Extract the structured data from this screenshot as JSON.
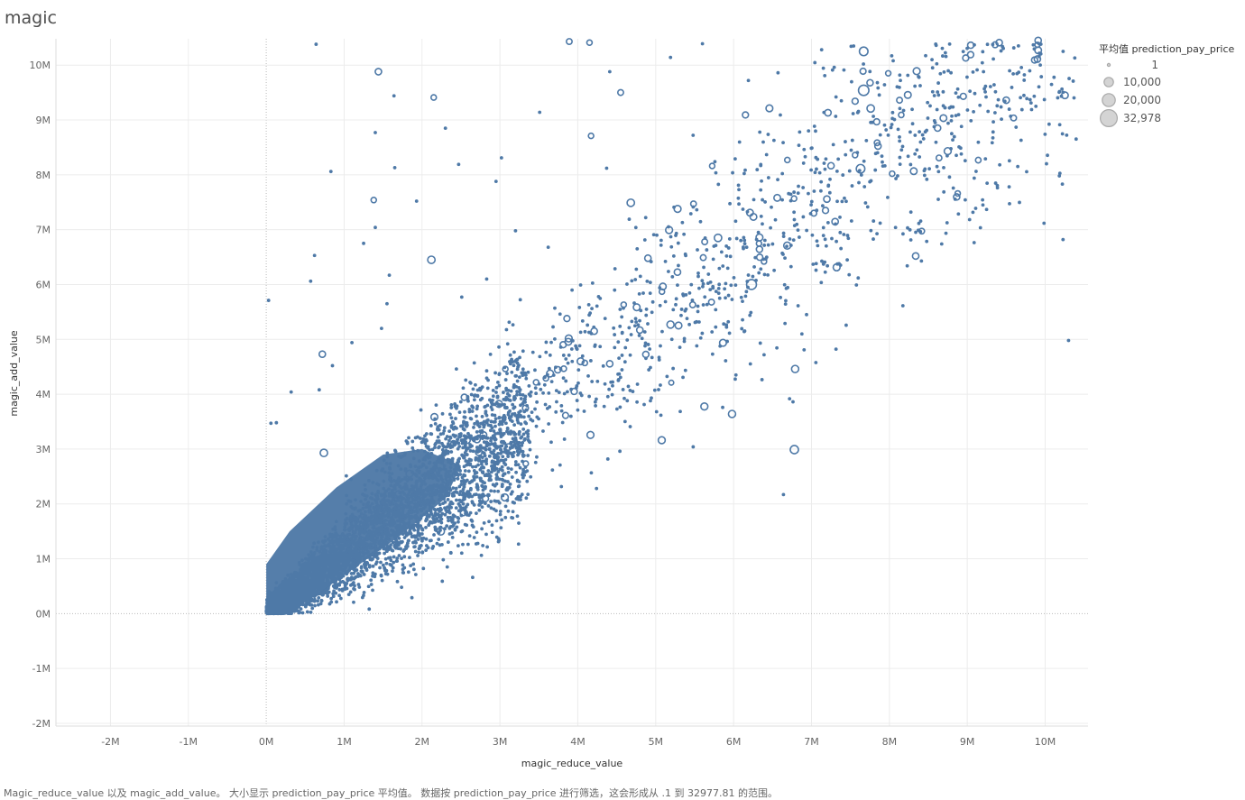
{
  "title": "magic",
  "caption": "Magic_reduce_value 以及 magic_add_value。 大小显示 prediction_pay_price 平均值。 数据按 prediction_pay_price 进行筛选，这会形成从 .1 到 32977.81 的范围。",
  "colors": {
    "mark": "#4e79a7",
    "grid": "#ececec",
    "legend_mark": "#bdbdbd"
  },
  "chart_data": {
    "type": "scatter",
    "xlabel": "magic_reduce_value",
    "ylabel": "magic_add_value",
    "xlim": [
      -2700000,
      10550000
    ],
    "ylim": [
      -2050000,
      10480000
    ],
    "x_ticks": [
      -2000000,
      -1000000,
      0,
      1000000,
      2000000,
      3000000,
      4000000,
      5000000,
      6000000,
      7000000,
      8000000,
      9000000,
      10000000
    ],
    "x_tick_labels": [
      "-2M",
      "-1M",
      "0M",
      "1M",
      "2M",
      "3M",
      "4M",
      "5M",
      "6M",
      "7M",
      "8M",
      "9M",
      "10M"
    ],
    "y_ticks": [
      -2000000,
      -1000000,
      0,
      1000000,
      2000000,
      3000000,
      4000000,
      5000000,
      6000000,
      7000000,
      8000000,
      9000000,
      10000000
    ],
    "y_tick_labels": [
      "-2M",
      "-1M",
      "0M",
      "1M",
      "2M",
      "3M",
      "4M",
      "5M",
      "6M",
      "7M",
      "8M",
      "9M",
      "10M"
    ],
    "grid": true,
    "legend": {
      "title": "平均值 prediction_pay_price",
      "position": "top-right",
      "entries": [
        {
          "label": "1",
          "value": 1
        },
        {
          "label": "10,000",
          "value": 10000
        },
        {
          "label": "20,000",
          "value": 20000
        },
        {
          "label": "32,978",
          "value": 32978
        }
      ]
    },
    "size_range": [
      0.1,
      32977.81
    ],
    "dense_cluster": {
      "description_free": true,
      "note_points": "bulk of points lie along x≈y band from 0 to ~3M",
      "center_x": [
        0,
        3000000
      ],
      "slope": 1.05
    },
    "points": [
      [
        640000,
        10380000,
        150
      ],
      [
        1440000,
        9880000,
        3000
      ],
      [
        1640000,
        9440000,
        200
      ],
      [
        2150000,
        9410000,
        1500
      ],
      [
        1400000,
        8770000,
        200
      ],
      [
        1650000,
        8130000,
        500
      ],
      [
        830000,
        8060000,
        200
      ],
      [
        1380000,
        7540000,
        1500
      ],
      [
        1400000,
        7040000,
        200
      ],
      [
        1250000,
        6750000,
        150
      ],
      [
        620000,
        6530000,
        200
      ],
      [
        570000,
        6060000,
        200
      ],
      [
        1580000,
        6170000,
        300
      ],
      [
        2120000,
        6450000,
        5000
      ],
      [
        30000,
        5710000,
        200
      ],
      [
        720000,
        4730000,
        3000
      ],
      [
        680000,
        4080000,
        500
      ],
      [
        320000,
        4040000,
        300
      ],
      [
        60000,
        3470000,
        200
      ],
      [
        130000,
        3480000,
        200
      ],
      [
        740000,
        2930000,
        5000
      ],
      [
        10300000,
        4980000,
        300
      ],
      [
        6640000,
        2170000,
        300
      ],
      [
        6790000,
        4460000,
        4500
      ],
      [
        6780000,
        2990000,
        7000
      ],
      [
        5980000,
        3640000,
        4500
      ],
      [
        6030000,
        4350000,
        400
      ],
      [
        5200000,
        4210000,
        1000
      ],
      [
        4240000,
        2280000,
        300
      ],
      [
        3010000,
        2990000,
        300
      ],
      [
        4540000,
        2960000,
        300
      ],
      [
        3010000,
        2920000,
        300
      ],
      [
        2650000,
        660000,
        300
      ],
      [
        3150000,
        1750000,
        300
      ],
      [
        1870000,
        290000,
        300
      ],
      [
        2240000,
        1500000,
        5000
      ],
      [
        2780000,
        1240000,
        300
      ],
      [
        1560000,
        1380000,
        300
      ],
      [
        2260000,
        590000,
        200
      ],
      [
        6230000,
        6000000,
        12000
      ],
      [
        5190000,
        5270000,
        4500
      ],
      [
        4210000,
        5150000,
        3000
      ],
      [
        3860000,
        5380000,
        2500
      ],
      [
        4090000,
        4570000,
        1500
      ],
      [
        3590000,
        4290000,
        1500
      ],
      [
        3070000,
        4460000,
        1500
      ],
      [
        4680000,
        7490000,
        5000
      ],
      [
        6390000,
        6420000,
        1500
      ],
      [
        5800000,
        6850000,
        5000
      ],
      [
        6210000,
        7310000,
        3500
      ],
      [
        6560000,
        7580000,
        3500
      ],
      [
        4900000,
        6480000,
        3000
      ],
      [
        5080000,
        5870000,
        1500
      ],
      [
        5610000,
        6490000,
        2000
      ],
      [
        6690000,
        8270000,
        1500
      ],
      [
        7630000,
        8110000,
        8000
      ],
      [
        7670000,
        9540000,
        14000
      ],
      [
        7670000,
        10250000,
        8000
      ],
      [
        7760000,
        9210000,
        5000
      ],
      [
        8350000,
        9890000,
        4000
      ],
      [
        8130000,
        9360000,
        2000
      ],
      [
        8980000,
        10130000,
        2500
      ],
      [
        9410000,
        10410000,
        3000
      ],
      [
        9910000,
        10450000,
        3000
      ],
      [
        9910000,
        10270000,
        3500
      ],
      [
        9900000,
        10110000,
        3000
      ],
      [
        9500000,
        9360000,
        3000
      ],
      [
        7180000,
        7350000,
        2500
      ],
      [
        7030000,
        7300000,
        2000
      ],
      [
        4170000,
        8710000,
        1500
      ],
      [
        4150000,
        10410000,
        1500
      ],
      [
        3890000,
        10430000,
        2000
      ],
      [
        3510000,
        9140000,
        400
      ],
      [
        4550000,
        9500000,
        2000
      ],
      [
        4410000,
        9880000,
        200
      ],
      [
        5190000,
        10140000,
        200
      ],
      [
        5600000,
        10390000,
        300
      ],
      [
        6190000,
        9720000,
        300
      ],
      [
        6570000,
        9860000,
        300
      ],
      [
        7270000,
        9910000,
        300
      ],
      [
        8030000,
        10170000,
        300
      ],
      [
        8600000,
        10360000,
        300
      ],
      [
        10380000,
        10130000,
        500
      ],
      [
        7130000,
        10280000,
        300
      ],
      [
        6600000,
        9090000,
        300
      ],
      [
        5480000,
        8720000,
        300
      ],
      [
        4660000,
        7190000,
        300
      ],
      [
        3620000,
        6680000,
        300
      ],
      [
        2830000,
        6100000,
        300
      ],
      [
        2510000,
        5770000,
        300
      ],
      [
        3200000,
        6980000,
        300
      ],
      [
        2950000,
        7880000,
        300
      ],
      [
        3020000,
        8310000,
        300
      ],
      [
        2300000,
        8850000,
        300
      ],
      [
        2470000,
        8190000,
        300
      ],
      [
        1930000,
        7520000,
        300
      ],
      [
        1550000,
        5650000,
        300
      ],
      [
        1480000,
        5200000,
        300
      ],
      [
        1100000,
        4940000,
        300
      ],
      [
        850000,
        4520000,
        300
      ],
      [
        4370000,
        8120000,
        300
      ],
      [
        5760000,
        8240000,
        300
      ],
      [
        7280000,
        8550000,
        300
      ],
      [
        8330000,
        8720000,
        300
      ],
      [
        8800000,
        8750000,
        300
      ],
      [
        9080000,
        9150000,
        300
      ],
      [
        9660000,
        9870000,
        300
      ],
      [
        10230000,
        10250000,
        300
      ],
      [
        6660000,
        5290000,
        300
      ],
      [
        5730000,
        4730000,
        300
      ],
      [
        5060000,
        4880000,
        300
      ],
      [
        4520000,
        4250000,
        300
      ],
      [
        3790000,
        3790000,
        300
      ],
      [
        3090000,
        3320000,
        300
      ],
      [
        2690000,
        2680000,
        300
      ],
      [
        2530000,
        2000000,
        300
      ],
      [
        2580000,
        1800000,
        300
      ],
      [
        2670000,
        1980000,
        300
      ],
      [
        1550000,
        1250000,
        300
      ],
      [
        2030000,
        1810000,
        300
      ]
    ]
  }
}
